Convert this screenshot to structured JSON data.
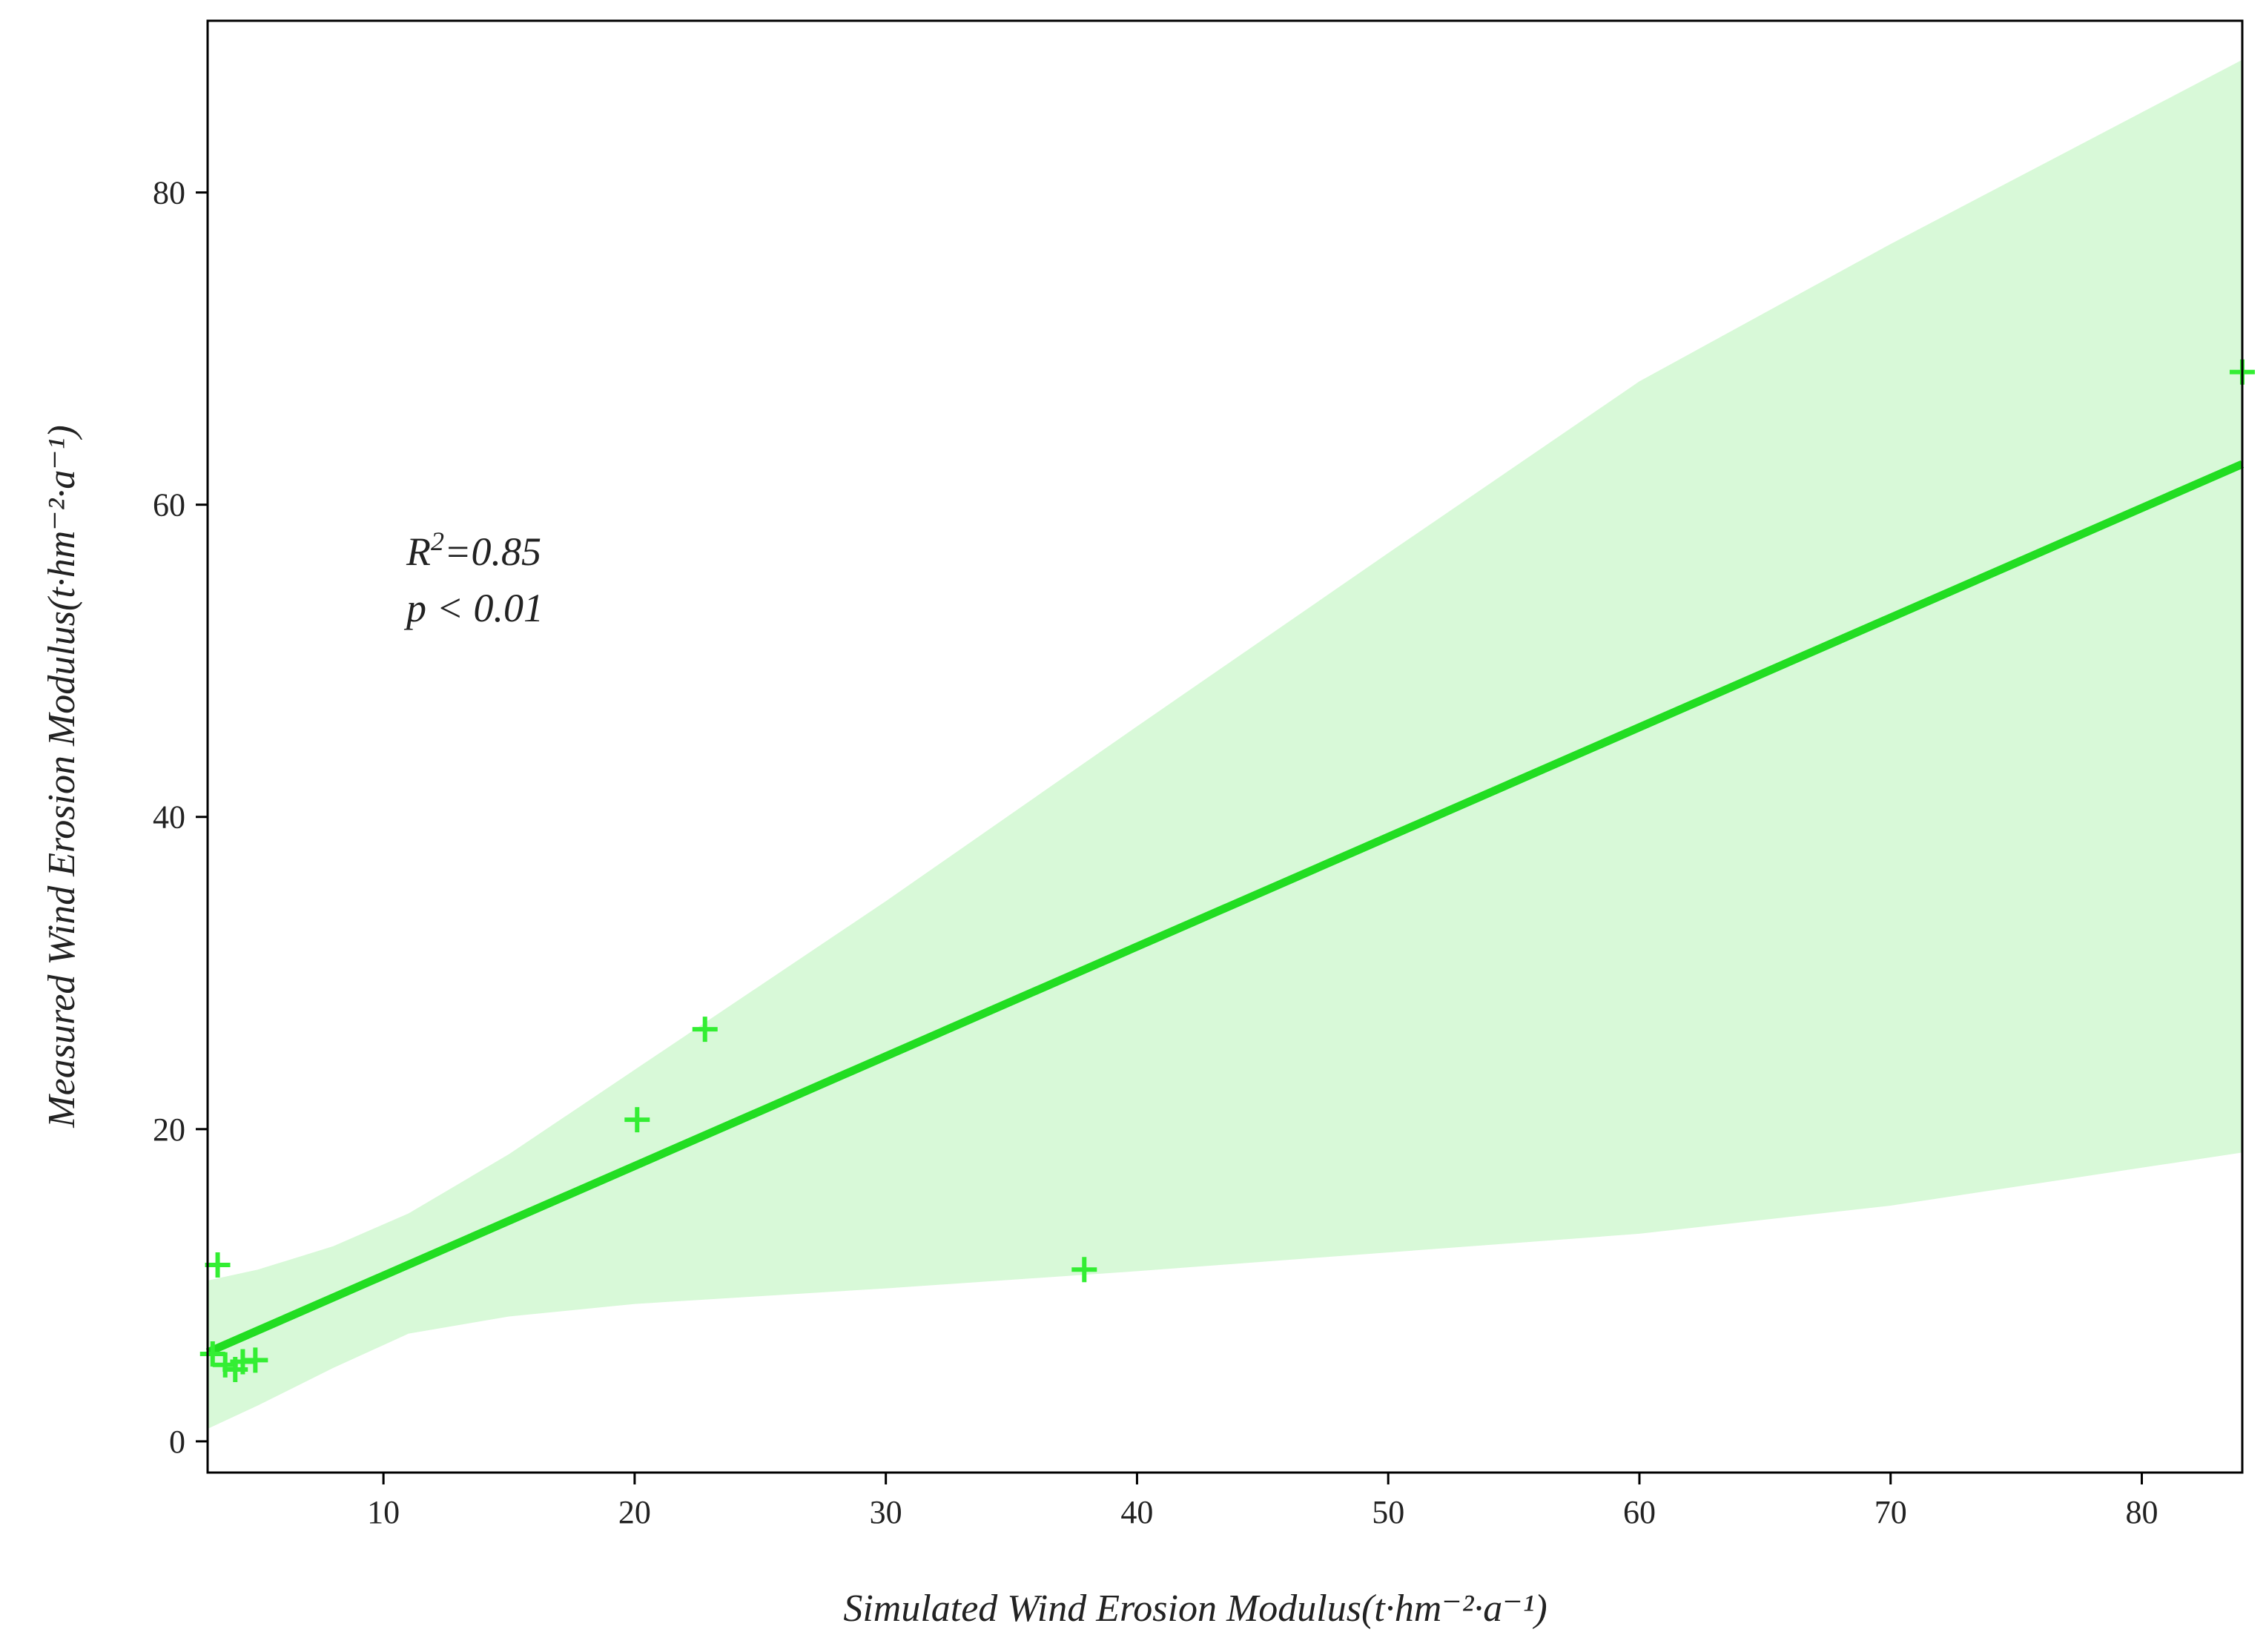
{
  "chart_data": {
    "type": "scatter",
    "xlabel": "Simulated Wind Erosion Modulus(t·hm⁻²·a⁻¹)",
    "ylabel": "Measured Wind Erosion Modulus(t·hm⁻²·a⁻¹)",
    "xlim": [
      3,
      84
    ],
    "ylim": [
      -2,
      91
    ],
    "x_ticks": [
      10,
      20,
      30,
      40,
      50,
      60,
      70,
      80
    ],
    "y_ticks": [
      0,
      20,
      40,
      60,
      80
    ],
    "grid": false,
    "legend": "none",
    "colors": {
      "points": "#33ee33",
      "fit_line": "#22dd22",
      "confidence_band": "#d8f9d8"
    },
    "points": [
      {
        "x": 3.4,
        "y": 11.3
      },
      {
        "x": 3.2,
        "y": 5.6
      },
      {
        "x": 3.7,
        "y": 4.9
      },
      {
        "x": 4.1,
        "y": 4.6
      },
      {
        "x": 4.4,
        "y": 5.1
      },
      {
        "x": 4.9,
        "y": 5.2
      },
      {
        "x": 20.1,
        "y": 20.6
      },
      {
        "x": 22.8,
        "y": 26.4
      },
      {
        "x": 37.9,
        "y": 11.0
      },
      {
        "x": 84.0,
        "y": 68.5
      }
    ],
    "regression_line": {
      "x": [
        3.0,
        84.0
      ],
      "y": [
        5.7,
        62.6
      ]
    },
    "confidence_band": {
      "x": [
        3,
        5,
        8,
        11,
        15,
        20,
        25,
        30,
        40,
        50,
        60,
        70,
        84
      ],
      "upper": [
        10.3,
        11.0,
        12.5,
        14.6,
        18.4,
        23.8,
        29.2,
        34.6,
        45.8,
        56.9,
        67.9,
        76.7,
        88.5
      ],
      "lower": [
        0.8,
        2.3,
        4.7,
        6.9,
        8.0,
        8.8,
        9.3,
        9.8,
        10.9,
        12.1,
        13.3,
        15.1,
        18.5
      ]
    },
    "annotations": [
      {
        "text_main": "R",
        "text_sup": "2",
        "text_rest": "=0.85"
      },
      {
        "text": "p < 0.01"
      }
    ]
  }
}
